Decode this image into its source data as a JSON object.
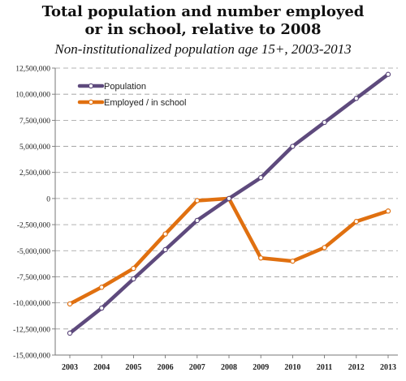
{
  "chart_data": {
    "type": "line",
    "title_lines": [
      "Total population and number employed",
      "or in school, relative to 2008"
    ],
    "subtitle": "Non-institutionalized population age 15+, 2003-2013",
    "xlabel": "",
    "ylabel": "",
    "x": [
      "2003",
      "2004",
      "2005",
      "2006",
      "2007",
      "2008",
      "2009",
      "2010",
      "2011",
      "2012",
      "2013"
    ],
    "ylim": [
      -15000000,
      12500000
    ],
    "yticks": [
      12500000,
      10000000,
      7500000,
      5000000,
      2500000,
      0,
      -2500000,
      -5000000,
      -7500000,
      -10000000,
      -12500000,
      -15000000
    ],
    "ytick_labels": [
      "12,500,000",
      "10,000,000",
      "7,500,000",
      "5,000,000",
      "2,500,000",
      "0",
      "-2,500,000",
      "-5,000,000",
      "-7,500,000",
      "-10,000,000",
      "-12,500,000",
      "-15,000,000"
    ],
    "grid": "horizontal dashed",
    "legend_position": "top-left",
    "series": [
      {
        "name": "Population",
        "color": "#5e4a7d",
        "values": [
          -12900000,
          -10500000,
          -7700000,
          -4900000,
          -2100000,
          0,
          2000000,
          5000000,
          7300000,
          9600000,
          11900000
        ]
      },
      {
        "name": "Employed / in school",
        "color": "#e07010",
        "values": [
          -10100000,
          -8500000,
          -6700000,
          -3400000,
          -200000,
          0,
          -5700000,
          -6000000,
          -4700000,
          -2200000,
          -1200000
        ]
      }
    ]
  }
}
